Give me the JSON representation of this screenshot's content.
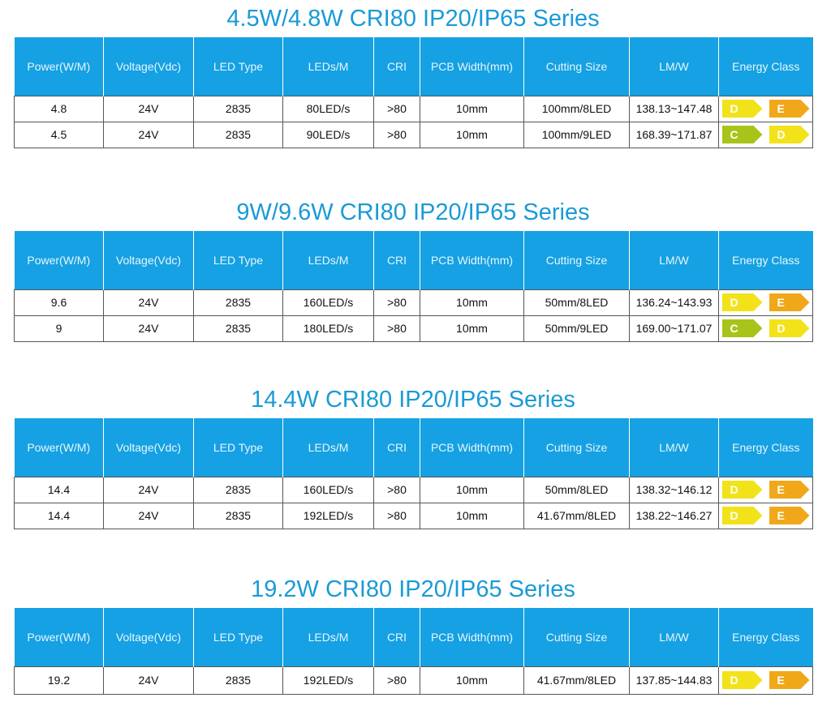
{
  "headers": [
    "Power(W/M)",
    "Voltage(Vdc)",
    "LED Type",
    "LEDs/M",
    "CRI",
    "PCB Width(mm)",
    "Cutting Size",
    "LM/W",
    "Energy Class"
  ],
  "energy_colors": {
    "C": "#a8c41a",
    "D": "#f2e21a",
    "E": "#f0a81a"
  },
  "sections": [
    {
      "title": "4.5W/4.8W CRI80 IP20/IP65 Series",
      "rows": [
        {
          "cells": [
            "4.8",
            "24V",
            "2835",
            "80LED/s",
            ">80",
            "10mm",
            "100mm/8LED",
            "138.13~147.48"
          ],
          "energy": [
            "D",
            "E"
          ]
        },
        {
          "cells": [
            "4.5",
            "24V",
            "2835",
            "90LED/s",
            ">80",
            "10mm",
            "100mm/9LED",
            "168.39~171.87"
          ],
          "energy": [
            "C",
            "D"
          ]
        }
      ]
    },
    {
      "title": "9W/9.6W CRI80 IP20/IP65 Series",
      "rows": [
        {
          "cells": [
            "9.6",
            "24V",
            "2835",
            "160LED/s",
            ">80",
            "10mm",
            "50mm/8LED",
            "136.24~143.93"
          ],
          "energy": [
            "D",
            "E"
          ]
        },
        {
          "cells": [
            "9",
            "24V",
            "2835",
            "180LED/s",
            ">80",
            "10mm",
            "50mm/9LED",
            "169.00~171.07"
          ],
          "energy": [
            "C",
            "D"
          ]
        }
      ]
    },
    {
      "title": "14.4W CRI80 IP20/IP65 Series",
      "rows": [
        {
          "cells": [
            "14.4",
            "24V",
            "2835",
            "160LED/s",
            ">80",
            "10mm",
            "50mm/8LED",
            "138.32~146.12"
          ],
          "energy": [
            "D",
            "E"
          ]
        },
        {
          "cells": [
            "14.4",
            "24V",
            "2835",
            "192LED/s",
            ">80",
            "10mm",
            "41.67mm/8LED",
            "138.22~146.27"
          ],
          "energy": [
            "D",
            "E"
          ]
        }
      ]
    },
    {
      "title": "19.2W CRI80 IP20/IP65 Series",
      "rows": [
        {
          "cells": [
            "19.2",
            "24V",
            "2835",
            "192LED/s",
            ">80",
            "10mm",
            "41.67mm/8LED",
            "137.85~144.83"
          ],
          "energy": [
            "D",
            "E"
          ]
        }
      ]
    }
  ]
}
